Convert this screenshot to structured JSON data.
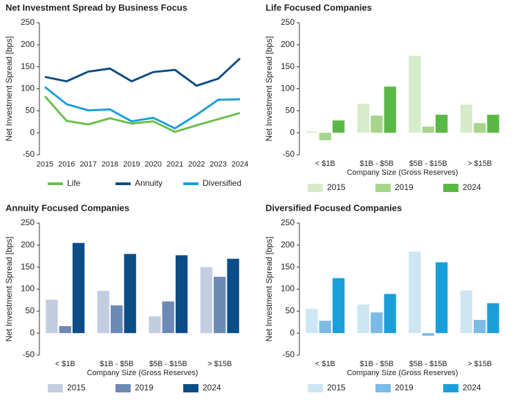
{
  "chart_data": [
    {
      "type": "line",
      "title": "Net Investment Spread by Business Focus",
      "y_label": "Net Investment Spread [bps]",
      "categories": [
        "2015",
        "2016",
        "2017",
        "2018",
        "2019",
        "2020",
        "2021",
        "2022",
        "2023",
        "2024"
      ],
      "series": [
        {
          "name": "Life",
          "color": "#6abf4b",
          "values": [
            83,
            27,
            19,
            33,
            21,
            26,
            2,
            17,
            31,
            45
          ]
        },
        {
          "name": "Annuity",
          "color": "#0f4c81",
          "values": [
            127,
            117,
            139,
            146,
            117,
            138,
            143,
            107,
            123,
            169
          ]
        },
        {
          "name": "Diversified",
          "color": "#1a9fd9",
          "values": [
            104,
            65,
            51,
            53,
            26,
            34,
            10,
            41,
            75,
            76
          ]
        }
      ],
      "ylim": [
        -50,
        250
      ],
      "yticks": [
        -50,
        0,
        50,
        100,
        150,
        200,
        250
      ],
      "grid": false,
      "legend": "bottom"
    },
    {
      "type": "bar",
      "title": "Life Focused Companies",
      "y_label": "Net Investment Spread [bps]",
      "x_label": "Company Size (Gross Reserves)",
      "categories": [
        "< $1B",
        "$1B - $5B",
        "$5B - $15B",
        "> $15B"
      ],
      "series": [
        {
          "name": "2015",
          "color": "#d6ebc9",
          "values": [
            3,
            66,
            175,
            64
          ]
        },
        {
          "name": "2019",
          "color": "#a8d58c",
          "values": [
            -17,
            39,
            14,
            22
          ]
        },
        {
          "name": "2024",
          "color": "#5ab946",
          "values": [
            28,
            105,
            41,
            41
          ]
        }
      ],
      "ylim": [
        -50,
        250
      ],
      "yticks": [
        -50,
        0,
        50,
        100,
        150,
        200,
        250
      ],
      "grid": false,
      "legend": "bottom"
    },
    {
      "type": "bar",
      "title": "Annuity Focused Companies",
      "y_label": "Net Investment Spread [bps]",
      "x_label": "Company Size (Gross Reserves)",
      "categories": [
        "< $1B",
        "$1B - $5B",
        "$5B - $15B",
        "> $15B"
      ],
      "series": [
        {
          "name": "2015",
          "color": "#c3cde2",
          "values": [
            76,
            96,
            38,
            150
          ]
        },
        {
          "name": "2019",
          "color": "#6d8ab5",
          "values": [
            16,
            63,
            72,
            128
          ]
        },
        {
          "name": "2024",
          "color": "#0b4d87",
          "values": [
            205,
            180,
            177,
            169
          ]
        }
      ],
      "ylim": [
        -50,
        250
      ],
      "yticks": [
        -50,
        0,
        50,
        100,
        150,
        200,
        250
      ],
      "grid": false,
      "legend": "bottom"
    },
    {
      "type": "bar",
      "title": "Diversified Focused Companies",
      "y_label": "Net Investment Spread [bps]",
      "x_label": "Company Size (Gross Reserves)",
      "categories": [
        "< $1B",
        "$1B - $5B",
        "$5B - $15B",
        "> $15B"
      ],
      "series": [
        {
          "name": "2015",
          "color": "#cde6f3",
          "values": [
            55,
            65,
            185,
            97
          ]
        },
        {
          "name": "2019",
          "color": "#7bbbe5",
          "values": [
            28,
            47,
            -6,
            30
          ]
        },
        {
          "name": "2024",
          "color": "#1a9fd9",
          "values": [
            125,
            89,
            161,
            68
          ]
        }
      ],
      "ylim": [
        -50,
        250
      ],
      "yticks": [
        -50,
        0,
        50,
        100,
        150,
        200,
        250
      ],
      "grid": false,
      "legend": "bottom"
    }
  ]
}
